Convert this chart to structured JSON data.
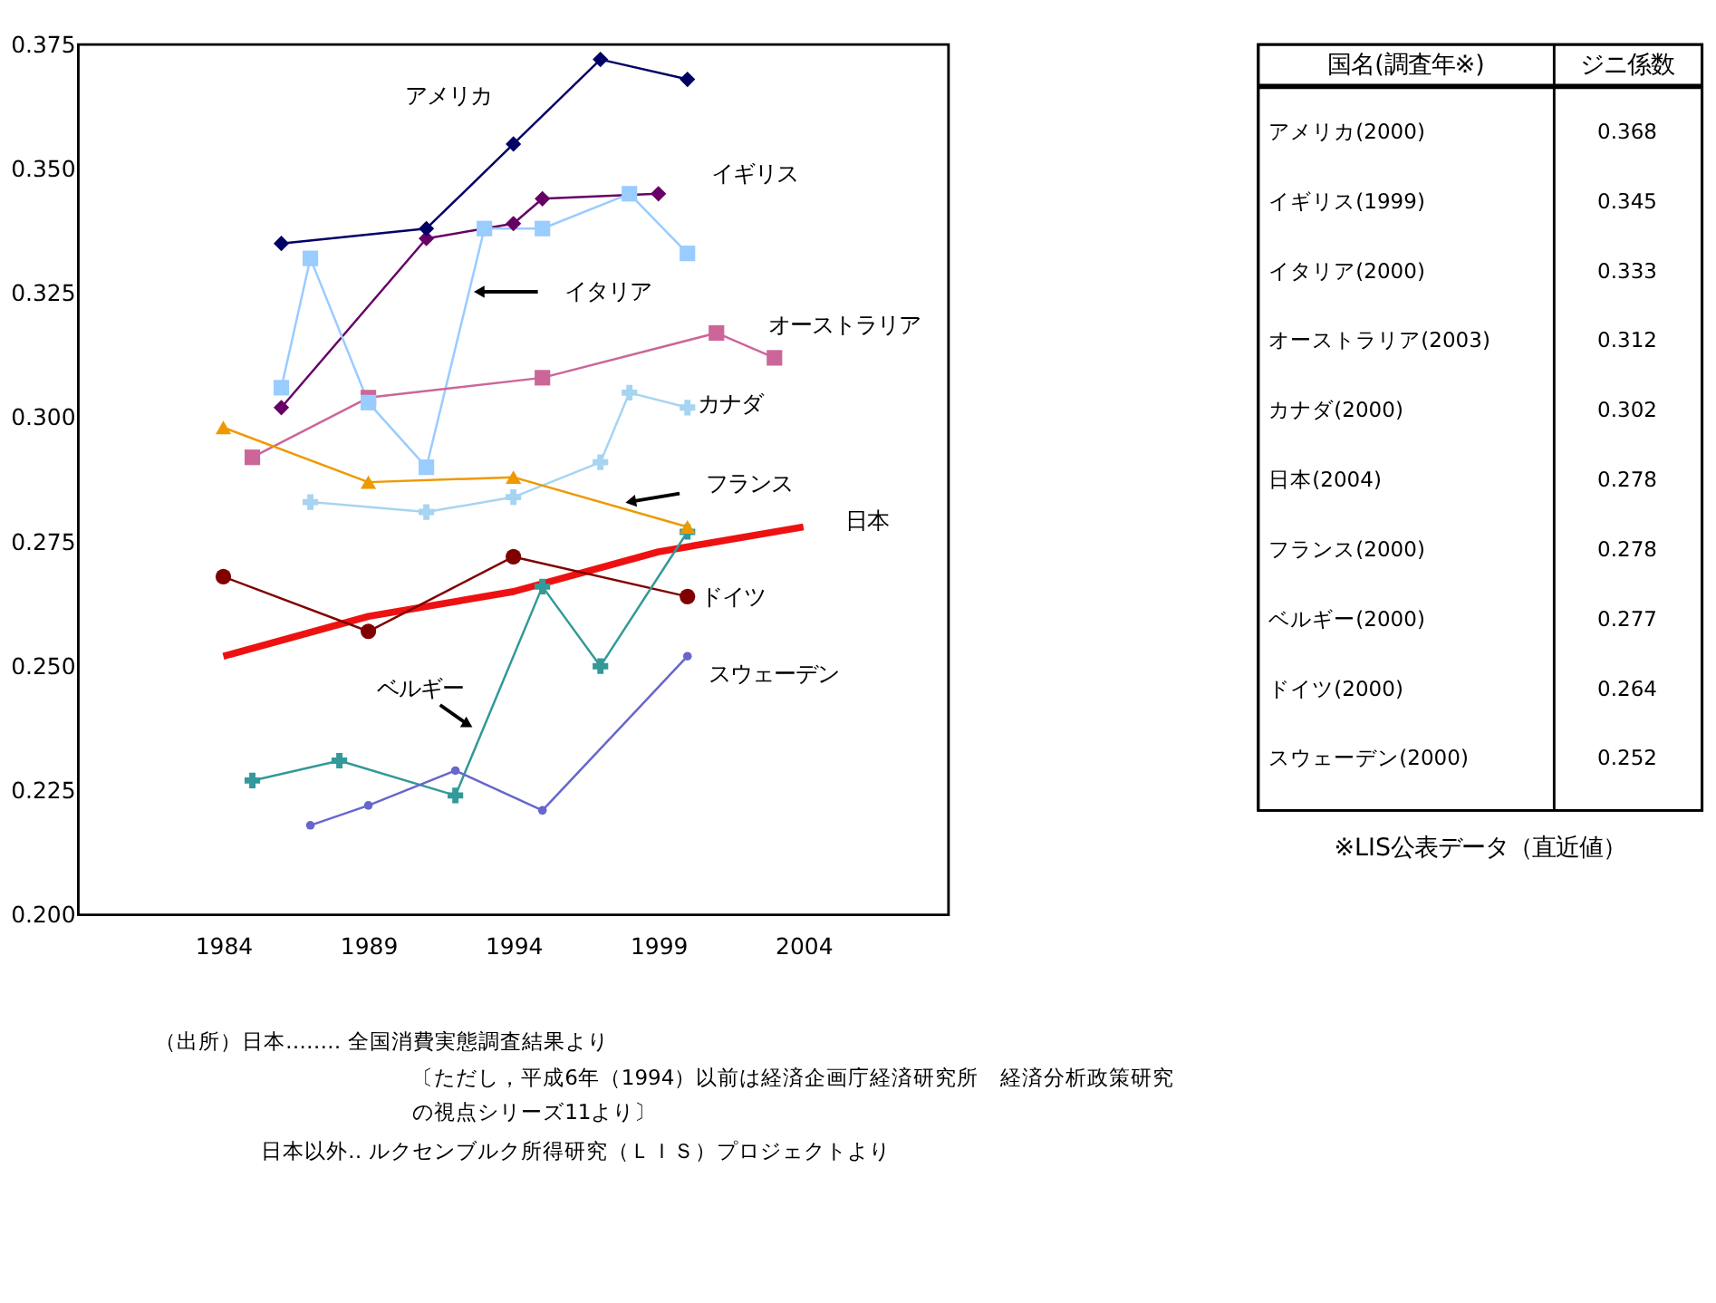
{
  "chart_data": [
    {
      "type": "line",
      "xlim": [
        1979,
        2009
      ],
      "xticks": [
        1984,
        1989,
        1994,
        1999,
        2004
      ],
      "ylim": [
        0.2,
        0.375
      ],
      "yticks": [
        {
          "value": 0.2,
          "label": "0.200"
        },
        {
          "value": 0.225,
          "label": "0.225"
        },
        {
          "value": 0.25,
          "label": "0.250"
        },
        {
          "value": 0.275,
          "label": "0.275"
        },
        {
          "value": 0.3,
          "label": "0.300"
        },
        {
          "value": 0.325,
          "label": "0.325"
        },
        {
          "value": 0.35,
          "label": "0.350"
        },
        {
          "value": 0.375,
          "label": "0.375"
        }
      ],
      "grid": false,
      "legend": false,
      "series": [
        {
          "name": "アメリカ",
          "color": "#000066",
          "marker": "diamond",
          "x": [
            1986,
            1991,
            1994,
            1997,
            2000
          ],
          "values": [
            0.335,
            0.338,
            0.355,
            0.372,
            0.368
          ]
        },
        {
          "name": "イギリス",
          "color": "#660066",
          "marker": "diamond",
          "x": [
            1986,
            1991,
            1994,
            1995,
            1999
          ],
          "values": [
            0.302,
            0.336,
            0.339,
            0.344,
            0.345
          ]
        },
        {
          "name": "イタリア",
          "color": "#99ccff",
          "marker": "square",
          "x": [
            1986,
            1987,
            1989,
            1991,
            1993,
            1995,
            1998,
            2000
          ],
          "values": [
            0.306,
            0.332,
            0.303,
            0.29,
            0.338,
            0.338,
            0.345,
            0.333
          ]
        },
        {
          "name": "オーストラリア",
          "color": "#cc6699",
          "marker": "square",
          "x": [
            1985,
            1989,
            1995,
            2001,
            2003
          ],
          "values": [
            0.292,
            0.304,
            0.308,
            0.317,
            0.312
          ]
        },
        {
          "name": "カナダ",
          "color": "#a6d4f2",
          "marker": "cross",
          "x": [
            1987,
            1991,
            1994,
            1997,
            1998,
            2000
          ],
          "values": [
            0.283,
            0.281,
            0.284,
            0.291,
            0.305,
            0.302
          ]
        },
        {
          "name": "フランス",
          "color": "#ee9900",
          "marker": "triangle",
          "x": [
            1984,
            1989,
            1994,
            2000
          ],
          "values": [
            0.298,
            0.287,
            0.288,
            0.278
          ]
        },
        {
          "name": "日本",
          "color": "#ee1111",
          "marker": "none",
          "x": [
            1984,
            1989,
            1994,
            1999,
            2004
          ],
          "values": [
            0.252,
            0.26,
            0.265,
            0.273,
            0.278
          ]
        },
        {
          "name": "ドイツ",
          "color": "#800000",
          "marker": "circle",
          "x": [
            1984,
            1989,
            1994,
            2000
          ],
          "values": [
            0.268,
            0.257,
            0.272,
            0.264
          ]
        },
        {
          "name": "ベルギー",
          "color": "#339999",
          "marker": "cross",
          "x": [
            1985,
            1988,
            1992,
            1995,
            1997,
            2000
          ],
          "values": [
            0.227,
            0.231,
            0.224,
            0.266,
            0.25,
            0.277
          ]
        },
        {
          "name": "スウェーデン",
          "color": "#6666cc",
          "marker": "circle",
          "x": [
            1987,
            1989,
            1992,
            1995,
            2000
          ],
          "values": [
            0.218,
            0.222,
            0.229,
            0.221,
            0.252
          ]
        }
      ],
      "annotations": [
        "（出所）日本‥‥‥‥ 全国消費実態調査結果より",
        "〔ただし，平成6年（1994）以前は経済企画庁経済研究所　経済分析政策研究",
        "の視点シリーズ11より〕",
        "日本以外‥ ルクセンブルク所得研究（ＬＩＳ）プロジェクトより"
      ]
    },
    {
      "type": "other",
      "xlabel": "国名(調査年※)",
      "ylabel": "ジニ係数",
      "categories": [
        "アメリカ(2000)",
        "イギリス(1999)",
        "イタリア(2000)",
        "オーストラリア(2003)",
        "カナダ(2000)",
        "日本(2004)",
        "フランス(2000)",
        "ベルギー(2000)",
        "ドイツ(2000)",
        "スウェーデン(2000)"
      ],
      "values": [
        0.368,
        0.345,
        0.333,
        0.312,
        0.302,
        0.278,
        0.278,
        0.277,
        0.264,
        0.252
      ],
      "data_labels": true,
      "annotations": [
        "※LIS公表データ（直近値）"
      ]
    }
  ]
}
